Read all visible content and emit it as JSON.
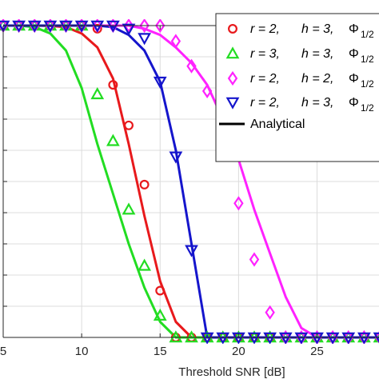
{
  "chart_data": {
    "type": "line",
    "xlabel": "Threshold SNR [dB]",
    "ylabel": "",
    "title": "",
    "xlim": [
      5,
      29
    ],
    "ylim": [
      0,
      1
    ],
    "grid": true,
    "x_ticks": [
      5,
      10,
      15,
      20,
      25
    ],
    "x_tick_labels": [
      "5",
      "10",
      "15",
      "20",
      "25"
    ],
    "y_grid_values": [
      0.1,
      0.2,
      0.3,
      0.4,
      0.5,
      0.6,
      0.7,
      0.8,
      0.9
    ],
    "legend_position": "top-right",
    "legend": [
      {
        "label_r": "r = 2,",
        "label_h": "h = 3,",
        "label_phi": "Φ",
        "label_sub": "1/2"
      },
      {
        "label_r": "r = 3,",
        "label_h": "h = 3,",
        "label_phi": "Φ",
        "label_sub": "1/2"
      },
      {
        "label_r": "r = 2,",
        "label_h": "h = 2,",
        "label_phi": "Φ",
        "label_sub": "1/2"
      },
      {
        "label_r": "r = 2,",
        "label_h": "h = 3,",
        "label_phi": "Φ",
        "label_sub": "1/2"
      },
      {
        "label": "Analytical"
      }
    ],
    "series": [
      {
        "color": "#e8191c",
        "marker": "circle",
        "analytical": {
          "x": [
            5,
            6,
            7,
            8,
            9,
            10,
            11,
            12,
            13,
            14,
            15,
            16,
            17,
            18,
            19,
            20,
            21,
            22,
            23,
            24,
            25,
            26,
            27,
            28,
            29
          ],
          "y": [
            1,
            1,
            1,
            0.999,
            0.995,
            0.975,
            0.93,
            0.83,
            0.62,
            0.39,
            0.18,
            0.05,
            0.0,
            0,
            0,
            0,
            0,
            0,
            0,
            0,
            0,
            0,
            0,
            0,
            0
          ]
        },
        "simulated": {
          "x": [
            5,
            6,
            7,
            8,
            9,
            10,
            11,
            12,
            13,
            14,
            15,
            16,
            17,
            18,
            19,
            20,
            21,
            22,
            23,
            24,
            25,
            26,
            27,
            28,
            29
          ],
          "y": [
            1,
            1,
            1,
            1,
            1,
            1,
            0.99,
            0.81,
            0.68,
            0.49,
            0.15,
            0,
            0,
            0,
            0,
            0,
            0,
            0,
            0,
            0,
            0,
            0,
            0,
            0,
            0
          ]
        }
      },
      {
        "color": "#22dd22",
        "marker": "triangle-up",
        "analytical": {
          "x": [
            5,
            6,
            7,
            8,
            9,
            10,
            11,
            12,
            13,
            14,
            15,
            16,
            17,
            18,
            19,
            20,
            21,
            22,
            23,
            24,
            25,
            26,
            27,
            28,
            29
          ],
          "y": [
            1,
            1,
            0.995,
            0.975,
            0.92,
            0.8,
            0.62,
            0.46,
            0.3,
            0.16,
            0.05,
            0.0,
            0,
            0,
            0,
            0,
            0,
            0,
            0,
            0,
            0,
            0,
            0,
            0,
            0
          ]
        },
        "simulated": {
          "x": [
            5,
            6,
            7,
            8,
            9,
            10,
            11,
            12,
            13,
            14,
            15,
            16,
            17,
            18,
            19,
            20,
            21,
            22,
            23,
            24,
            25,
            26,
            27,
            28,
            29
          ],
          "y": [
            1,
            1,
            1,
            1,
            1,
            1,
            0.78,
            0.63,
            0.41,
            0.23,
            0.07,
            0,
            0,
            0,
            0,
            0,
            0,
            0,
            0,
            0,
            0,
            0,
            0,
            0,
            0
          ]
        }
      },
      {
        "color": "#ff22ff",
        "marker": "diamond",
        "analytical": {
          "x": [
            5,
            6,
            7,
            8,
            9,
            10,
            11,
            12,
            13,
            14,
            15,
            16,
            17,
            18,
            19,
            20,
            21,
            22,
            23,
            24,
            25,
            26,
            27,
            28,
            29
          ],
          "y": [
            1,
            1,
            1,
            1,
            1,
            1,
            1,
            1,
            1,
            0.99,
            0.97,
            0.93,
            0.88,
            0.81,
            0.7,
            0.57,
            0.41,
            0.27,
            0.13,
            0.03,
            0.0,
            0,
            0,
            0,
            0
          ]
        },
        "simulated": {
          "x": [
            5,
            6,
            7,
            8,
            9,
            10,
            11,
            12,
            13,
            14,
            15,
            16,
            17,
            18,
            19,
            20,
            21,
            22,
            23,
            24,
            25,
            26,
            27,
            28,
            29
          ],
          "y": [
            1,
            1,
            1,
            1,
            1,
            1,
            1,
            1,
            1,
            1,
            1,
            0.95,
            0.87,
            0.79,
            0.62,
            0.43,
            0.25,
            0.08,
            0.0,
            0,
            0,
            0,
            0,
            0,
            0
          ]
        }
      },
      {
        "color": "#1515cc",
        "marker": "triangle-down",
        "analytical": {
          "x": [
            5,
            6,
            7,
            8,
            9,
            10,
            11,
            12,
            13,
            14,
            15,
            16,
            17,
            18,
            19,
            20,
            21,
            22,
            23,
            24,
            25,
            26,
            27,
            28,
            29
          ],
          "y": [
            1,
            1,
            1,
            1,
            1,
            1,
            1,
            0.995,
            0.97,
            0.92,
            0.82,
            0.6,
            0.3,
            0.0,
            0,
            0,
            0,
            0,
            0,
            0,
            0,
            0,
            0,
            0,
            0
          ]
        },
        "simulated": {
          "x": [
            5,
            6,
            7,
            8,
            9,
            10,
            11,
            12,
            13,
            14,
            15,
            16,
            17,
            18,
            19,
            20,
            21,
            22,
            23,
            24,
            25,
            26,
            27,
            28,
            29
          ],
          "y": [
            1,
            1,
            1,
            1,
            1,
            1,
            1,
            1,
            0.99,
            0.96,
            0.82,
            0.58,
            0.28,
            0.0,
            0,
            0,
            0,
            0,
            0,
            0,
            0,
            0,
            0,
            0,
            0
          ]
        }
      }
    ]
  }
}
